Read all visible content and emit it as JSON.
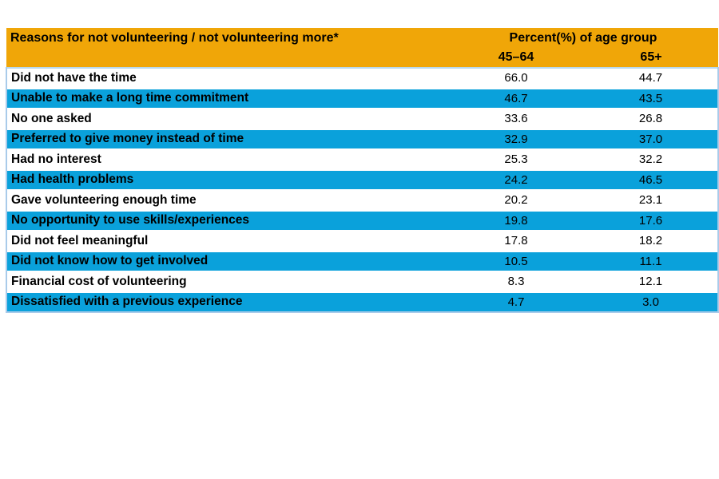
{
  "colors": {
    "header_orange": "#F0A608",
    "band_blue": "#0AA1DB",
    "band_white": "#FFFFFF",
    "outer_border_blue": "#A9CBEA",
    "text_black": "#000000"
  },
  "chart_data": {
    "type": "table",
    "title": "Reasons for not volunteering / not volunteering more*",
    "group_header": "Percent(%) of age group",
    "categories": [
      "Did not have the time",
      "Unable to  make a long time commitment",
      "No one asked",
      "Preferred to give money instead of time",
      "Had no interest",
      "Had health problems",
      "Gave volunteering enough time",
      "No opportunity to use skills/experiences",
      "Did not feel meaningful",
      "Did not know how to get involved",
      "Financial cost of volunteering",
      "Dissatisfied with a previous experience"
    ],
    "series": [
      {
        "name": "45–64",
        "values": [
          66.0,
          46.7,
          33.6,
          32.9,
          25.3,
          24.2,
          20.2,
          19.8,
          17.8,
          10.5,
          8.3,
          4.7
        ]
      },
      {
        "name": "65+",
        "values": [
          44.7,
          43.5,
          26.8,
          37.0,
          32.2,
          46.5,
          23.1,
          17.6,
          18.2,
          11.1,
          12.1,
          3.0
        ]
      }
    ],
    "layout_hints": {
      "row_banding": [
        "white",
        "blue"
      ],
      "value_decimals": 1
    }
  }
}
